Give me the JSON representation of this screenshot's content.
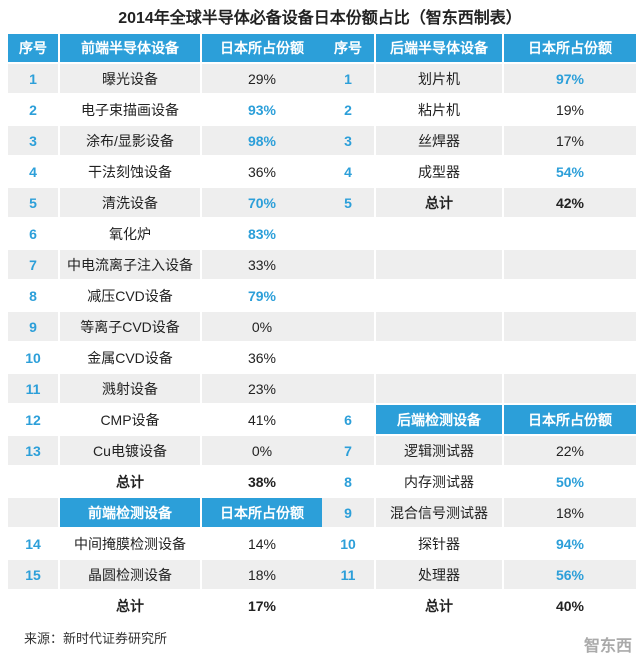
{
  "title": "2014年全球半导体必备设备日本份额占比（智东西制表）",
  "left": {
    "columns": [
      "序号",
      "前端半导体设备",
      "日本所占份额"
    ],
    "rows": [
      {
        "no": "1",
        "item": "曝光设备",
        "share": "29%",
        "highlight": false
      },
      {
        "no": "2",
        "item": "电子束描画设备",
        "share": "93%",
        "highlight": true
      },
      {
        "no": "3",
        "item": "涂布/显影设备",
        "share": "98%",
        "highlight": true
      },
      {
        "no": "4",
        "item": "干法刻蚀设备",
        "share": "36%",
        "highlight": false
      },
      {
        "no": "5",
        "item": "清洗设备",
        "share": "70%",
        "highlight": true
      },
      {
        "no": "6",
        "item": "氧化炉",
        "share": "83%",
        "highlight": true
      },
      {
        "no": "7",
        "item": "中电流离子注入设备",
        "share": "33%",
        "highlight": false
      },
      {
        "no": "8",
        "item": "减压CVD设备",
        "share": "79%",
        "highlight": true
      },
      {
        "no": "9",
        "item": "等离子CVD设备",
        "share": "0%",
        "highlight": false
      },
      {
        "no": "10",
        "item": "金属CVD设备",
        "share": "36%",
        "highlight": false
      },
      {
        "no": "11",
        "item": "溅射设备",
        "share": "23%",
        "highlight": false
      },
      {
        "no": "12",
        "item": "CMP设备",
        "share": "41%",
        "highlight": false
      },
      {
        "no": "13",
        "item": "Cu电镀设备",
        "share": "0%",
        "highlight": false
      },
      {
        "item": "总计",
        "share": "38%",
        "total": true
      },
      {
        "item": "前端检测设备",
        "share": "日本所占份额",
        "header": true
      },
      {
        "no": "14",
        "item": "中间掩膜检测设备",
        "share": "14%",
        "highlight": false
      },
      {
        "no": "15",
        "item": "晶圆检测设备",
        "share": "18%",
        "highlight": false
      },
      {
        "item": "总计",
        "share": "17%",
        "total": true
      }
    ]
  },
  "right": {
    "columns": [
      "序号",
      "后端半导体设备",
      "日本所占份额"
    ],
    "rows": [
      {
        "no": "1",
        "item": "划片机",
        "share": "97%",
        "highlight": true
      },
      {
        "no": "2",
        "item": "粘片机",
        "share": "19%",
        "highlight": false
      },
      {
        "no": "3",
        "item": "丝焊器",
        "share": "17%",
        "highlight": false
      },
      {
        "no": "4",
        "item": "成型器",
        "share": "54%",
        "highlight": true
      },
      {
        "no": "5",
        "item": "总计",
        "share": "42%",
        "total": true
      },
      {},
      {},
      {},
      {},
      {},
      {},
      {
        "no": "6",
        "item": "后端检测设备",
        "share": "日本所占份额",
        "header": true
      },
      {
        "no": "7",
        "item": "逻辑测试器",
        "share": "22%",
        "highlight": false
      },
      {
        "no": "8",
        "item": "内存测试器",
        "share": "50%",
        "highlight": true
      },
      {
        "no": "9",
        "item": "混合信号测试器",
        "share": "18%",
        "highlight": false
      },
      {
        "no": "10",
        "item": "探针器",
        "share": "94%",
        "highlight": true
      },
      {
        "no": "11",
        "item": "处理器",
        "share": "56%",
        "highlight": true
      },
      {
        "item": "总计",
        "share": "40%",
        "total": true
      }
    ]
  },
  "source": "来源：新时代证券研究所",
  "watermark": "智东西"
}
